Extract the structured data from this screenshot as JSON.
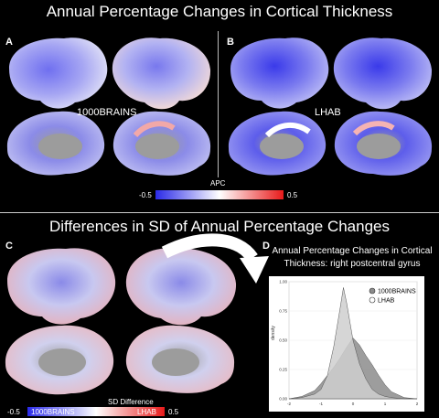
{
  "titles": {
    "top": "Annual Percentage Changes in Cortical Thickness",
    "middle": "Differences in SD of Annual Percentage Changes"
  },
  "panels": {
    "a": "A",
    "b": "B",
    "c": "C",
    "d": "D"
  },
  "cohorts": {
    "a_label": "1000BRAINS",
    "b_label": "LHAB"
  },
  "apc_colorbar": {
    "title": "APC",
    "min": "-0.5",
    "max": "0.5",
    "colors": [
      "#2a2ae8",
      "#ffffff",
      "#e81a1a"
    ]
  },
  "sd_colorbar": {
    "title": "SD Difference",
    "min": "-0.5",
    "max": "0.5",
    "left_label": "1000BRAINS",
    "right_label": "LHAB"
  },
  "panel_d": {
    "title_line1": "Annual Percentage Changes in Cortical",
    "title_line2": "Thickness: right postcentral gyrus",
    "ylabel": "density",
    "chart_data": {
      "type": "area",
      "x_ticks": [
        "-2",
        "-1",
        "0",
        "1",
        "2"
      ],
      "y_ticks": [
        "0.00",
        "0.25",
        "0.50",
        "0.75",
        "1.00"
      ],
      "xlim": [
        -2,
        2
      ],
      "ylim": [
        0,
        1.0
      ],
      "series": [
        {
          "name": "1000BRAINS",
          "color": "#8c8c8c",
          "x": [
            -2.0,
            -1.6,
            -1.2,
            -1.0,
            -0.8,
            -0.6,
            -0.4,
            -0.2,
            0.0,
            0.2,
            0.4,
            0.6,
            0.8,
            1.0,
            1.2,
            1.6,
            2.0
          ],
          "y": [
            0.0,
            0.02,
            0.07,
            0.13,
            0.2,
            0.27,
            0.35,
            0.44,
            0.52,
            0.46,
            0.37,
            0.29,
            0.2,
            0.12,
            0.06,
            0.01,
            0.0
          ]
        },
        {
          "name": "LHAB",
          "color": "#cfcfcf",
          "x": [
            -2.0,
            -1.6,
            -1.2,
            -1.0,
            -0.8,
            -0.6,
            -0.4,
            -0.3,
            -0.2,
            0.0,
            0.2,
            0.4,
            0.6,
            0.8,
            1.0,
            1.2,
            1.6,
            2.0
          ],
          "y": [
            0.0,
            0.01,
            0.04,
            0.08,
            0.2,
            0.45,
            0.78,
            0.95,
            0.82,
            0.5,
            0.3,
            0.17,
            0.08,
            0.04,
            0.02,
            0.01,
            0.0,
            0.0
          ]
        }
      ]
    }
  }
}
